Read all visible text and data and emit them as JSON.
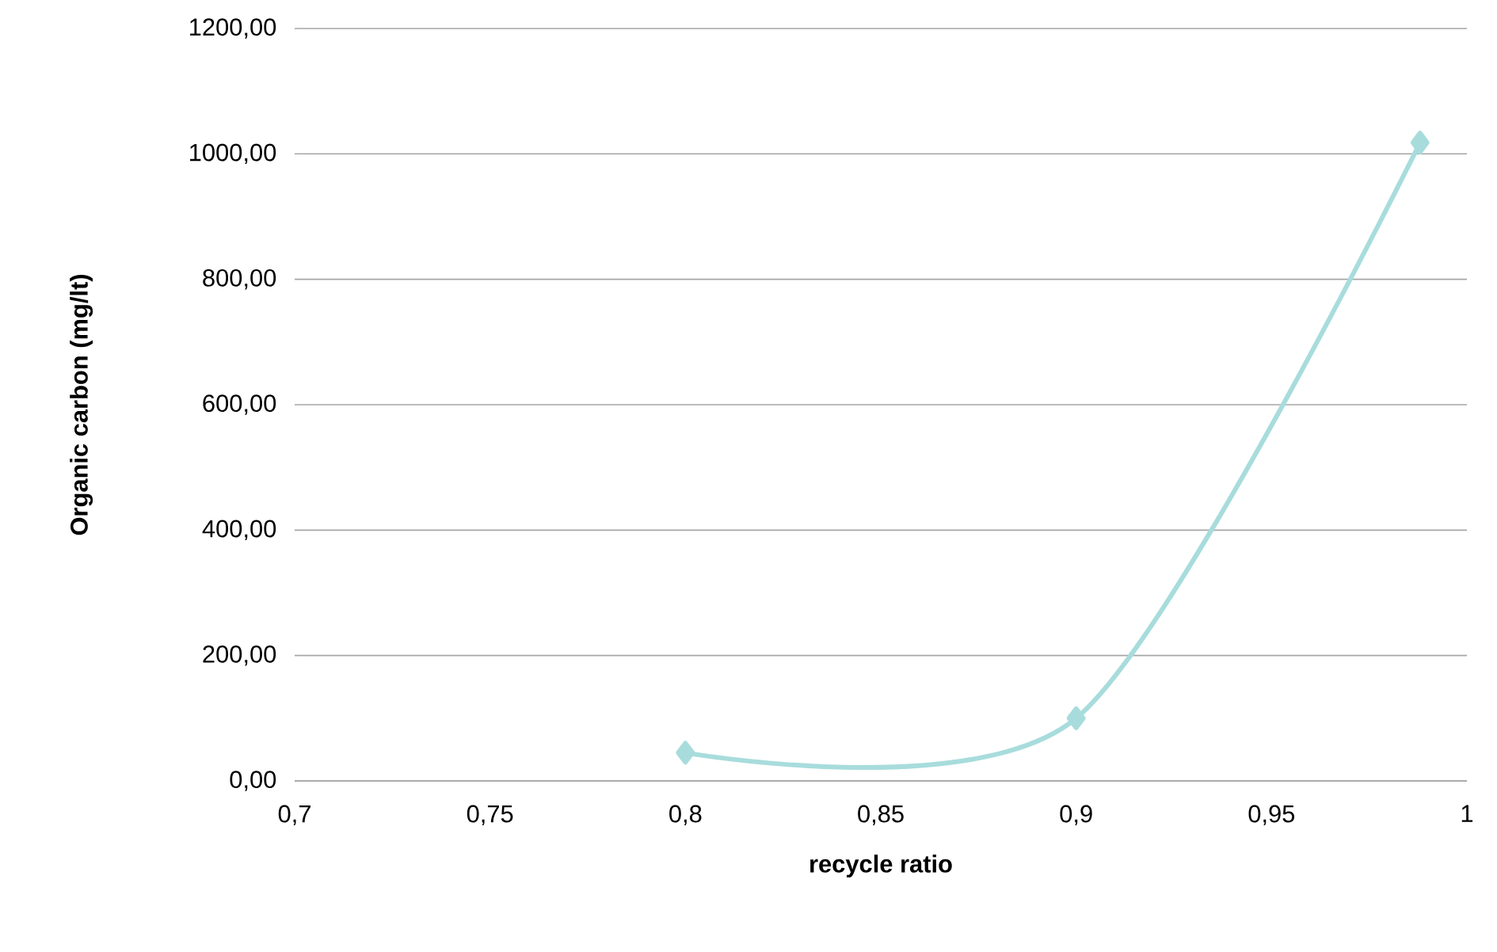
{
  "chart_data": {
    "type": "line",
    "xlabel": "recycle ratio",
    "ylabel": "Organic carbon (mg/lt)",
    "x": [
      0.8,
      0.9,
      0.988
    ],
    "series": [
      {
        "color": "#a8dcdc",
        "values": [
          45,
          100,
          1018
        ]
      }
    ],
    "xlim": [
      0.7,
      1
    ],
    "ylim": [
      0,
      1200
    ],
    "xticks": [
      {
        "value": 0.7,
        "label": "0,7"
      },
      {
        "value": 0.75,
        "label": "0,75"
      },
      {
        "value": 0.8,
        "label": "0,8"
      },
      {
        "value": 0.85,
        "label": "0,85"
      },
      {
        "value": 0.9,
        "label": "0,9"
      },
      {
        "value": 0.95,
        "label": "0,95"
      },
      1
    ],
    "yticks": [
      {
        "value": 0,
        "label": "0,00"
      },
      {
        "value": 200,
        "label": "200,00"
      },
      {
        "value": 400,
        "label": "400,00"
      },
      {
        "value": 600,
        "label": "600,00"
      },
      {
        "value": 800,
        "label": "800,00"
      },
      {
        "value": 1000,
        "label": "1000,00"
      },
      {
        "value": 1200,
        "label": "1200,00"
      }
    ],
    "grid": "y",
    "marker": "diamond",
    "line_style": "solid"
  }
}
